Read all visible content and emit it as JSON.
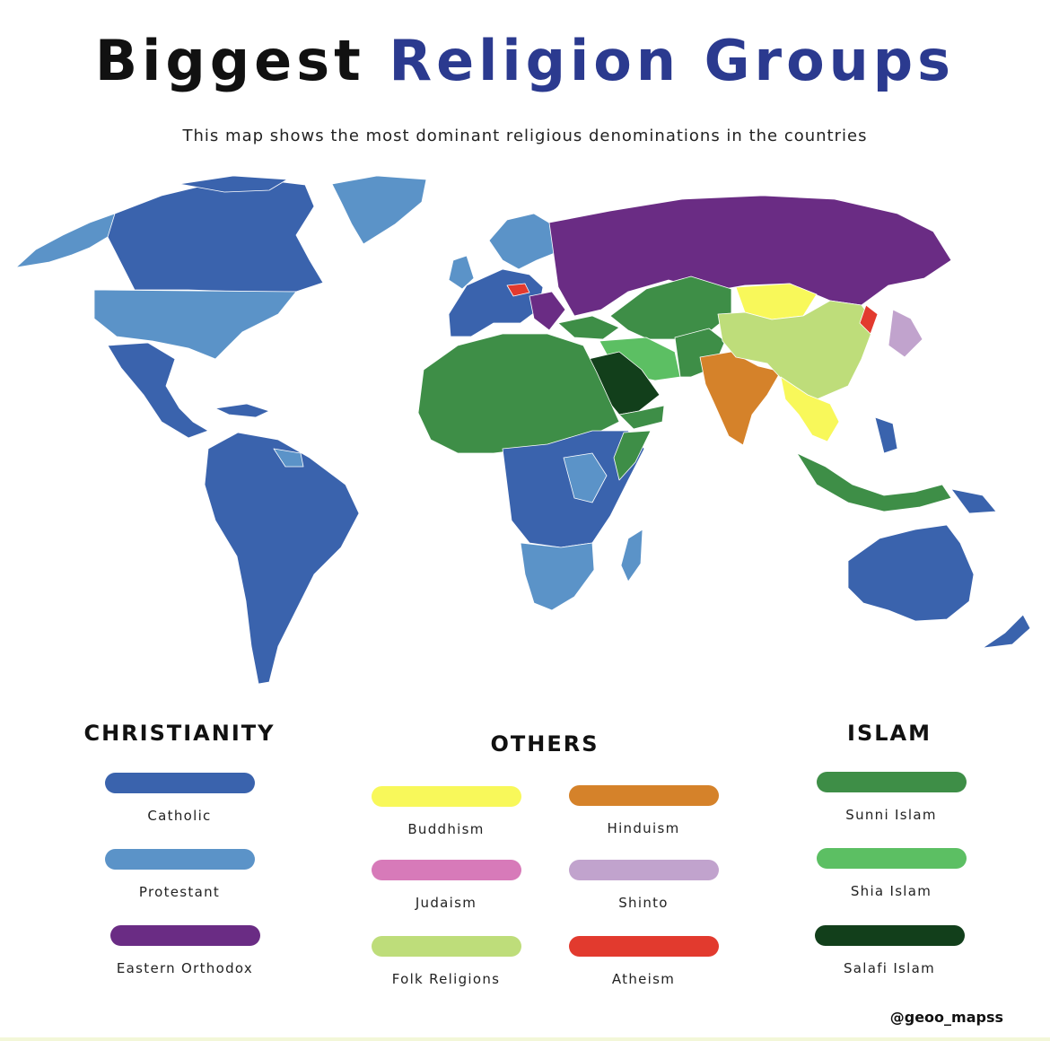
{
  "title": {
    "part1": "Biggest",
    "part2": "Religion Groups"
  },
  "subtitle": "This map shows the most dominant religious denominations in the countries",
  "colors": {
    "catholic": "#3a63ad",
    "protestant": "#5b93c8",
    "orthodox": "#6a2c84",
    "sunni": "#3e8e47",
    "shia": "#5cbf63",
    "salafi": "#123f1b",
    "buddhism": "#f8f85a",
    "hinduism": "#d5822a",
    "judaism": "#d77ab9",
    "shinto": "#c1a3cd",
    "folk": "#bedd7a",
    "atheism": "#e23a2e"
  },
  "legend": {
    "christianity": {
      "heading": "CHRISTIANITY",
      "items": [
        {
          "label": "Catholic",
          "color": "#3a63ad"
        },
        {
          "label": "Protestant",
          "color": "#5b93c8"
        },
        {
          "label": "Eastern Orthodox",
          "color": "#6a2c84"
        }
      ]
    },
    "others": {
      "heading": "OTHERS",
      "items": [
        {
          "label": "Buddhism",
          "color": "#f8f85a"
        },
        {
          "label": "Hinduism",
          "color": "#d5822a"
        },
        {
          "label": "Judaism",
          "color": "#d77ab9"
        },
        {
          "label": "Shinto",
          "color": "#c1a3cd"
        },
        {
          "label": "Folk Religions",
          "color": "#bedd7a"
        },
        {
          "label": "Atheism",
          "color": "#e23a2e"
        }
      ]
    },
    "islam": {
      "heading": "ISLAM",
      "items": [
        {
          "label": "Sunni Islam",
          "color": "#3e8e47"
        },
        {
          "label": "Shia Islam",
          "color": "#5cbf63"
        },
        {
          "label": "Salafi Islam",
          "color": "#123f1b"
        }
      ]
    }
  },
  "credit": "@geoo_mapss"
}
